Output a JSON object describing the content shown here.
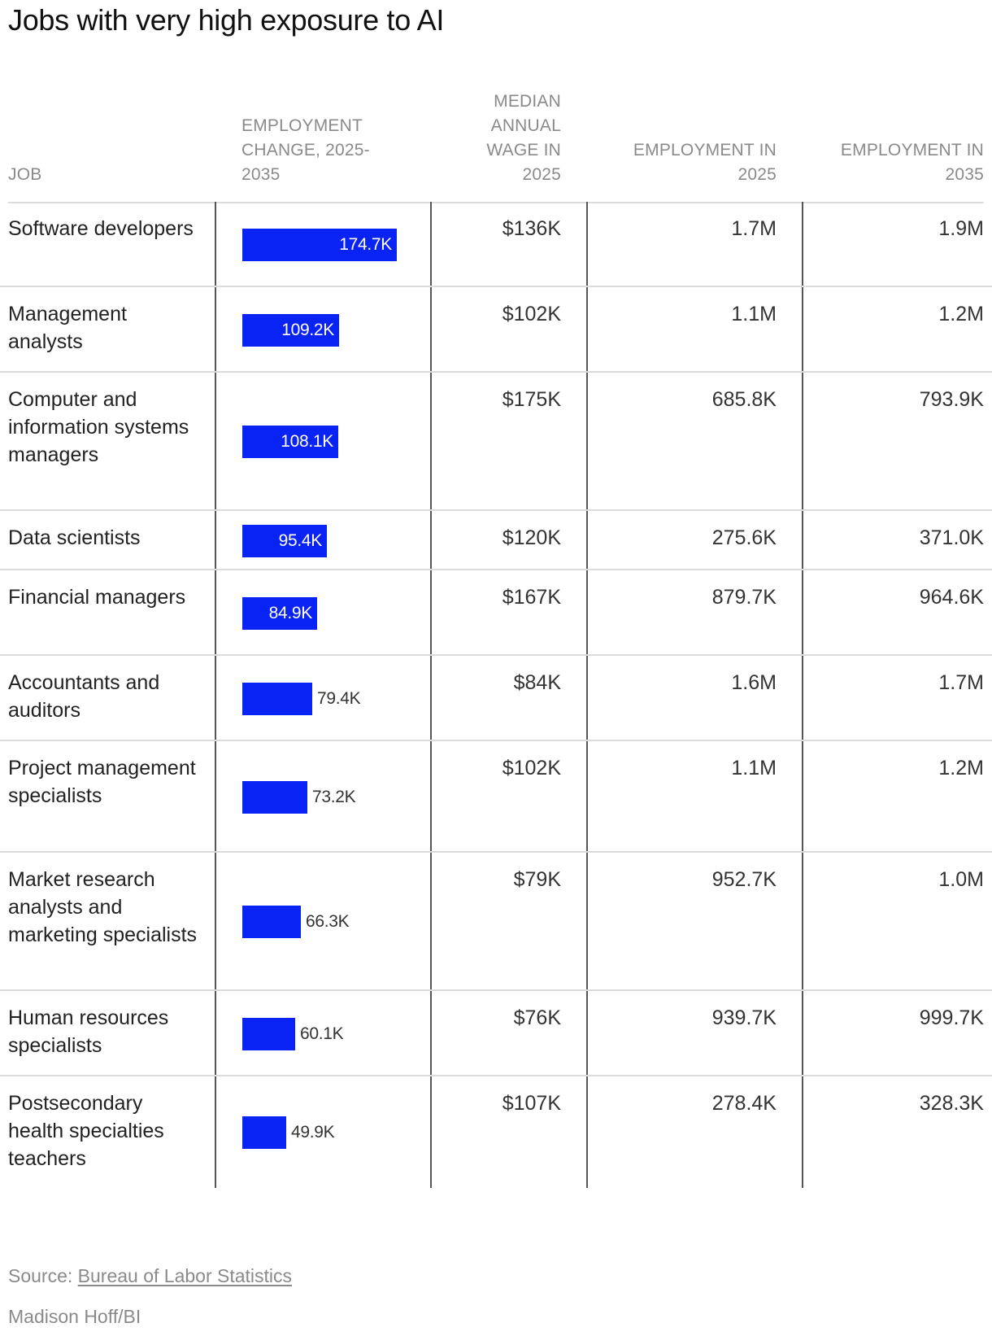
{
  "chart_data": {
    "type": "table",
    "title": "Jobs with very high exposure to AI",
    "columns": {
      "job": "JOB",
      "change": [
        "EMPLOYMENT",
        "CHANGE, 2025-",
        "2035"
      ],
      "wage": [
        "MEDIAN",
        "ANNUAL",
        "WAGE IN",
        "2025"
      ],
      "emp2025": [
        "EMPLOYMENT IN",
        "2025"
      ],
      "emp2035": [
        "EMPLOYMENT IN",
        "2035"
      ]
    },
    "bar_max": 174.7,
    "rows": [
      {
        "job": "Software developers",
        "change": 174.7,
        "change_label": "174.7K",
        "wage": "$136K",
        "emp2025": "1.7M",
        "emp2035": "1.9M"
      },
      {
        "job": "Management analysts",
        "change": 109.2,
        "change_label": "109.2K",
        "wage": "$102K",
        "emp2025": "1.1M",
        "emp2035": "1.2M"
      },
      {
        "job": "Computer and information systems managers",
        "change": 108.1,
        "change_label": "108.1K",
        "wage": "$175K",
        "emp2025": "685.8K",
        "emp2035": "793.9K"
      },
      {
        "job": "Data scientists",
        "change": 95.4,
        "change_label": "95.4K",
        "wage": "$120K",
        "emp2025": "275.6K",
        "emp2035": "371.0K"
      },
      {
        "job": "Financial managers",
        "change": 84.9,
        "change_label": "84.9K",
        "wage": "$167K",
        "emp2025": "879.7K",
        "emp2035": "964.6K"
      },
      {
        "job": "Accountants and auditors",
        "change": 79.4,
        "change_label": "79.4K",
        "wage": "$84K",
        "emp2025": "1.6M",
        "emp2035": "1.7M"
      },
      {
        "job": "Project management specialists",
        "change": 73.2,
        "change_label": "73.2K",
        "wage": "$102K",
        "emp2025": "1.1M",
        "emp2035": "1.2M"
      },
      {
        "job": "Market research analysts and marketing specialists",
        "change": 66.3,
        "change_label": "66.3K",
        "wage": "$79K",
        "emp2025": "952.7K",
        "emp2035": "1.0M"
      },
      {
        "job": "Human resources specialists",
        "change": 60.1,
        "change_label": "60.1K",
        "wage": "$76K",
        "emp2025": "939.7K",
        "emp2035": "999.7K"
      },
      {
        "job": "Postsecondary health specialties teachers",
        "change": 49.9,
        "change_label": "49.9K",
        "wage": "$107K",
        "emp2025": "278.4K",
        "emp2035": "328.3K"
      }
    ],
    "bar_color": "#0a23f5"
  },
  "footer": {
    "source_prefix": "Source: ",
    "source_link": "Bureau of Labor Statistics",
    "credit": "Madison Hoff/BI"
  }
}
